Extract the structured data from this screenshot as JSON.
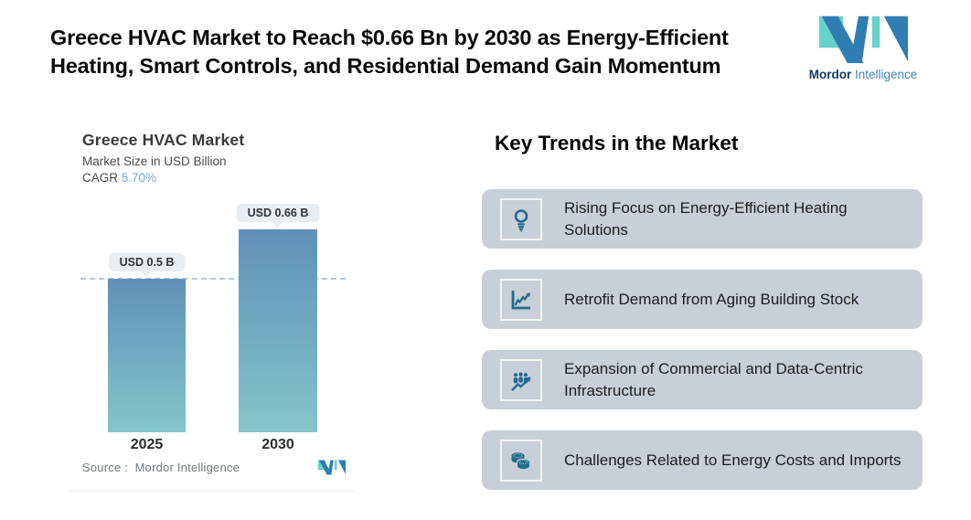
{
  "header": {
    "title_lines": [
      "Greece HVAC Market to Reach $0.66 Bn by 2030 as Energy-Efficient",
      "Heating, Smart Controls, and Residential Demand Gain Momentum"
    ],
    "logo": {
      "brand_bold": "Mordor",
      "brand_regular": "Intelligence"
    }
  },
  "chart": {
    "title": "Greece HVAC Market",
    "subtitle": "Market Size in USD Billion",
    "cagr_label": "CAGR",
    "cagr_value": "5.70%",
    "source_label": "Source :",
    "source_value": "Mordor Intelligence"
  },
  "chart_data": {
    "type": "bar",
    "title": "Greece HVAC Market",
    "ylabel": "Market Size in USD Billion",
    "cagr": "5.70%",
    "categories": [
      "2025",
      "2030"
    ],
    "values": [
      0.5,
      0.66
    ],
    "value_labels": [
      "USD 0.5 B",
      "USD 0.66 B"
    ],
    "ylim": [
      0,
      0.72
    ],
    "reference_line": 0.5,
    "grid": false,
    "legend": false,
    "bar_gradient_top": "#6090B8",
    "bar_gradient_bottom": "#84C5CA",
    "reference_line_color": "#A9C8E5"
  },
  "trends": {
    "heading": "Key Trends in the Market",
    "items": [
      {
        "icon": "lightbulb-icon",
        "text": "Rising Focus on Energy-Efficient Heating Solutions"
      },
      {
        "icon": "line-chart-icon",
        "text": "Retrofit Demand from Aging Building Stock"
      },
      {
        "icon": "people-growth-icon",
        "text": "Expansion of Commercial and Data-Centric Infrastructure"
      },
      {
        "icon": "coins-icon",
        "text": "Challenges Related to Energy Costs and Imports"
      }
    ]
  },
  "colors": {
    "brand_teal": "#68D1C9",
    "brand_blue": "#2F7DB3",
    "brand_navy": "#16395E",
    "card_background": "#C9CFD6",
    "icon_color": "#1F6B8E",
    "cagr_accent": "#73A9DA",
    "callout_background": "#E7EDF0"
  }
}
